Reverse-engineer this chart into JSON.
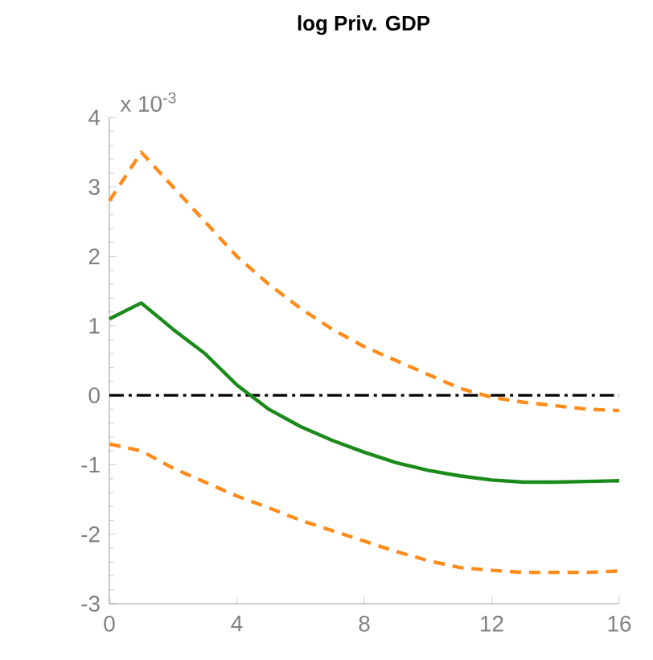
{
  "chart_data": {
    "type": "line",
    "title": "log Priv. GDP",
    "annotations": [
      "x 10$^{-3}$"
    ],
    "x": [
      0,
      1,
      2,
      3,
      4,
      5,
      6,
      7,
      8,
      9,
      10,
      11,
      12,
      13,
      14,
      15,
      16
    ],
    "series": [
      {
        "color": "#ff8c1a",
        "line_style": "dashed",
        "values": [
          2.8,
          3.5,
          3.0,
          2.5,
          2.0,
          1.6,
          1.25,
          0.95,
          0.7,
          0.5,
          0.3,
          0.1,
          -0.03,
          -0.1,
          -0.15,
          -0.2,
          -0.22
        ]
      },
      {
        "color": "#1a8a1a",
        "line_style": "solid",
        "values": [
          1.1,
          1.33,
          0.95,
          0.6,
          0.15,
          -0.2,
          -0.45,
          -0.65,
          -0.82,
          -0.97,
          -1.08,
          -1.16,
          -1.22,
          -1.25,
          -1.25,
          -1.24,
          -1.23
        ]
      },
      {
        "color": "#ff8c1a",
        "line_style": "dashed",
        "values": [
          -0.7,
          -0.8,
          -1.05,
          -1.25,
          -1.45,
          -1.62,
          -1.8,
          -1.95,
          -2.1,
          -2.25,
          -2.38,
          -2.48,
          -2.52,
          -2.55,
          -2.55,
          -2.55,
          -2.53
        ]
      }
    ],
    "ref_lines": [
      {
        "axis": "y",
        "value": 0,
        "color": "#000000",
        "line_style": "dashdot"
      }
    ],
    "xlim": [
      0,
      16
    ],
    "xticks": [
      0,
      4,
      8,
      12,
      16
    ],
    "ylim": [
      -3,
      4
    ],
    "yticks": [
      -3,
      -2,
      -1,
      0,
      1,
      2,
      3,
      4
    ],
    "grid": false,
    "marker": "none"
  }
}
